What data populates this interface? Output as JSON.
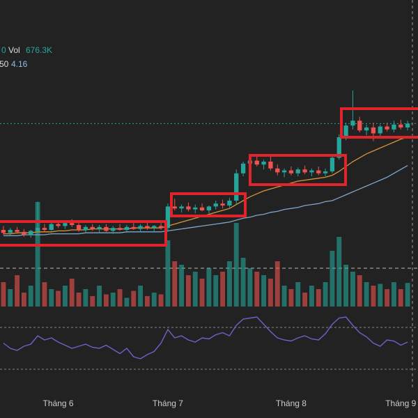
{
  "chart_data": {
    "type": "candlestick",
    "legend": [
      [
        "0",
        "Vol",
        "676.3K"
      ],
      [
        "50",
        "4.16"
      ]
    ],
    "xlim": [
      -0.5,
      59.5
    ],
    "xticks": [
      {
        "value": 8,
        "label": "Tháng 6"
      },
      {
        "value": 24,
        "label": "Tháng 7"
      },
      {
        "value": 42,
        "label": "Tháng 8"
      },
      {
        "value": 58,
        "label": "Tháng 9"
      }
    ],
    "ylim": [
      3,
      5
    ],
    "colors": {
      "up": "#26a69a",
      "down": "#ef5350"
    },
    "open": [
      3.5,
      3.47,
      3.5,
      3.48,
      3.45,
      3.49,
      3.52,
      3.5,
      3.56,
      3.54,
      3.57,
      3.55,
      3.5,
      3.53,
      3.51,
      3.53,
      3.49,
      3.52,
      3.5,
      3.53,
      3.51,
      3.54,
      3.52,
      3.54,
      3.52,
      3.74,
      3.72,
      3.74,
      3.71,
      3.73,
      3.7,
      3.74,
      3.77,
      3.75,
      3.8,
      4.08,
      4.18,
      4.21,
      4.17,
      4.2,
      4.13,
      4.09,
      4.11,
      4.08,
      4.12,
      4.09,
      4.11,
      4.08,
      4.1,
      4.24,
      4.45,
      4.57,
      4.62,
      4.52,
      4.55,
      4.49,
      4.56,
      4.53,
      4.58,
      4.55
    ],
    "high": [
      3.54,
      3.52,
      3.53,
      3.51,
      3.5,
      3.79,
      3.56,
      3.58,
      3.6,
      3.59,
      3.61,
      3.57,
      3.55,
      3.56,
      3.55,
      3.56,
      3.54,
      3.56,
      3.55,
      3.57,
      3.56,
      3.58,
      3.55,
      3.57,
      3.77,
      3.82,
      3.76,
      3.78,
      3.76,
      3.77,
      3.75,
      3.8,
      3.81,
      3.83,
      4.12,
      4.2,
      4.24,
      4.26,
      4.22,
      4.25,
      4.17,
      4.13,
      4.15,
      4.14,
      4.16,
      4.13,
      4.15,
      4.13,
      4.26,
      4.48,
      4.6,
      4.93,
      4.66,
      4.58,
      4.6,
      4.58,
      4.6,
      4.62,
      4.63,
      4.62
    ],
    "low": [
      3.45,
      3.44,
      3.46,
      3.43,
      3.42,
      3.46,
      3.48,
      3.49,
      3.52,
      3.51,
      3.53,
      3.48,
      3.47,
      3.49,
      3.47,
      3.48,
      3.46,
      3.49,
      3.47,
      3.5,
      3.48,
      3.5,
      3.48,
      3.5,
      3.48,
      3.7,
      3.68,
      3.69,
      3.67,
      3.69,
      3.67,
      3.71,
      3.72,
      3.73,
      3.76,
      4.05,
      4.14,
      4.15,
      4.12,
      4.11,
      4.06,
      4.04,
      4.06,
      4.05,
      4.07,
      4.05,
      4.06,
      4.05,
      4.08,
      4.22,
      4.42,
      4.53,
      4.5,
      4.47,
      4.41,
      4.46,
      4.51,
      4.5,
      4.53,
      4.52
    ],
    "close": [
      3.47,
      3.5,
      3.48,
      3.45,
      3.49,
      3.52,
      3.5,
      3.56,
      3.54,
      3.57,
      3.55,
      3.5,
      3.53,
      3.51,
      3.53,
      3.49,
      3.52,
      3.5,
      3.53,
      3.51,
      3.54,
      3.52,
      3.54,
      3.52,
      3.74,
      3.72,
      3.74,
      3.71,
      3.73,
      3.7,
      3.74,
      3.77,
      3.75,
      3.8,
      4.08,
      4.18,
      4.21,
      4.17,
      4.2,
      4.13,
      4.09,
      4.11,
      4.08,
      4.12,
      4.09,
      4.11,
      4.08,
      4.1,
      4.24,
      4.45,
      4.57,
      4.62,
      4.52,
      4.55,
      4.49,
      4.56,
      4.53,
      4.58,
      4.55,
      4.59
    ],
    "ma": [
      {
        "color": "#d9953a",
        "values": [
          3.46,
          3.46,
          3.47,
          3.47,
          3.47,
          3.48,
          3.48,
          3.48,
          3.49,
          3.49,
          3.5,
          3.5,
          3.5,
          3.51,
          3.51,
          3.51,
          3.51,
          3.51,
          3.51,
          3.52,
          3.52,
          3.52,
          3.52,
          3.52,
          3.54,
          3.56,
          3.58,
          3.6,
          3.62,
          3.64,
          3.66,
          3.68,
          3.7,
          3.72,
          3.76,
          3.8,
          3.84,
          3.87,
          3.9,
          3.92,
          3.94,
          3.96,
          3.98,
          4.0,
          4.01,
          4.02,
          4.03,
          4.04,
          4.06,
          4.1,
          4.15,
          4.2,
          4.24,
          4.28,
          4.31,
          4.34,
          4.37,
          4.4,
          4.43,
          4.45
        ]
      },
      {
        "color": "#7fa6cc",
        "values": [
          3.44,
          3.44,
          3.44,
          3.45,
          3.45,
          3.45,
          3.45,
          3.46,
          3.46,
          3.46,
          3.46,
          3.46,
          3.47,
          3.47,
          3.47,
          3.47,
          3.47,
          3.47,
          3.48,
          3.48,
          3.48,
          3.48,
          3.48,
          3.48,
          3.49,
          3.5,
          3.51,
          3.52,
          3.53,
          3.54,
          3.55,
          3.56,
          3.57,
          3.58,
          3.6,
          3.62,
          3.63,
          3.65,
          3.66,
          3.68,
          3.69,
          3.71,
          3.72,
          3.73,
          3.75,
          3.76,
          3.77,
          3.79,
          3.8,
          3.83,
          3.86,
          3.89,
          3.92,
          3.95,
          3.98,
          4.01,
          4.04,
          4.08,
          4.12,
          4.16
        ]
      }
    ],
    "volume": {
      "ylim": [
        0,
        4000
      ],
      "values": [
        700,
        500,
        900,
        400,
        600,
        3000,
        700,
        500,
        450,
        600,
        800,
        400,
        500,
        300,
        600,
        350,
        400,
        500,
        250,
        450,
        600,
        300,
        400,
        350,
        1900,
        1300,
        1200,
        900,
        1000,
        800,
        1100,
        900,
        1000,
        1300,
        2400,
        1400,
        1100,
        1000,
        900,
        800,
        1300,
        600,
        500,
        700,
        400,
        600,
        500,
        700,
        1600,
        2000,
        1200,
        1000,
        900,
        700,
        600,
        650,
        500,
        700,
        500,
        676.3
      ]
    },
    "rsi": {
      "color": "#6c63c9",
      "ylim": [
        20,
        85
      ],
      "levels": [
        30,
        70
      ],
      "values": [
        55,
        50,
        48,
        52,
        54,
        62,
        58,
        60,
        56,
        53,
        50,
        52,
        54,
        51,
        50,
        53,
        49,
        45,
        50,
        42,
        40,
        44,
        47,
        55,
        68,
        60,
        62,
        58,
        56,
        60,
        59,
        63,
        65,
        62,
        72,
        78,
        79,
        80,
        73,
        66,
        60,
        58,
        57,
        60,
        62,
        59,
        58,
        64,
        73,
        79,
        80,
        72,
        65,
        61,
        55,
        52,
        58,
        57,
        53,
        56
      ]
    }
  }
}
